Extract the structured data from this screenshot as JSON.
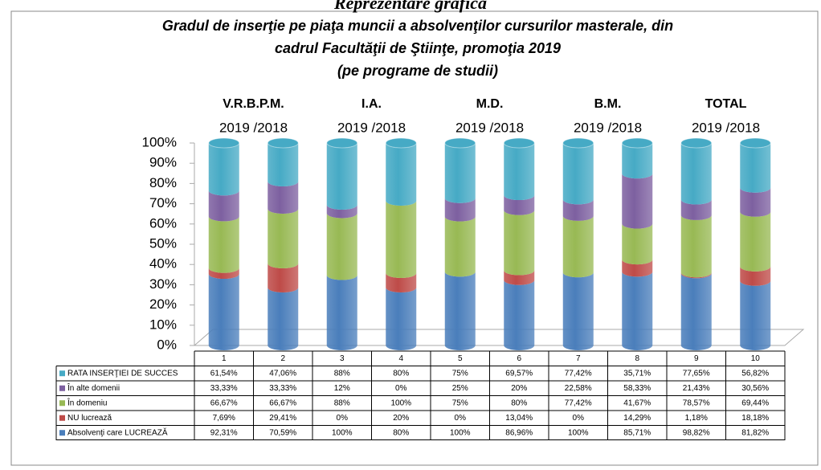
{
  "chart_data": {
    "type": "stacked_cylinder_100",
    "page_heading": "Reprezentare grafică",
    "title": [
      "Gradul de inserţie pe piaţa muncii a absolvenţilor cursurilor masterale, din",
      "cadrul Facultăţii de Ştiinţe, promoţia 2019",
      "(pe programe de studii)"
    ],
    "groups": [
      {
        "label": "V.R.B.P.M.",
        "years": "2019 /2018"
      },
      {
        "label": "I.A.",
        "years": "2019 /2018"
      },
      {
        "label": "M.D.",
        "years": "2019 /2018"
      },
      {
        "label": "B.M.",
        "years": "2019 /2018"
      },
      {
        "label": "TOTAL",
        "years": "2019 /2018"
      }
    ],
    "categories": [
      "1",
      "2",
      "3",
      "4",
      "5",
      "6",
      "7",
      "8",
      "9",
      "10"
    ],
    "ylim": [
      0,
      100
    ],
    "yticks": [
      {
        "value": 0,
        "label": "0%"
      },
      {
        "value": 10,
        "label": "10%"
      },
      {
        "value": 20,
        "label": "20%"
      },
      {
        "value": 30,
        "label": "30%"
      },
      {
        "value": 40,
        "label": "40%"
      },
      {
        "value": 50,
        "label": "50%"
      },
      {
        "value": 60,
        "label": "60%"
      },
      {
        "value": 70,
        "label": "70%"
      },
      {
        "value": 80,
        "label": "80%"
      },
      {
        "value": 90,
        "label": "90%"
      },
      {
        "value": 100,
        "label": "100%"
      }
    ],
    "series": [
      {
        "name": "Absolvenţi care LUCREAZĂ",
        "color": "#4a7ebb",
        "values": [
          92.31,
          70.59,
          100,
          80,
          100,
          86.96,
          100,
          85.71,
          98.82,
          81.82
        ],
        "value_labels": [
          "92,31%",
          "70,59%",
          "100%",
          "80%",
          "100%",
          "86,96%",
          "100%",
          "85,71%",
          "98,82%",
          "81,82%"
        ]
      },
      {
        "name": "NU lucrează",
        "color": "#be4b48",
        "values": [
          7.69,
          29.41,
          0,
          20,
          0,
          13.04,
          0,
          14.29,
          1.18,
          18.18
        ],
        "value_labels": [
          "7,69%",
          "29,41%",
          "0%",
          "20%",
          "0%",
          "13,04%",
          "0%",
          "14,29%",
          "1,18%",
          "18,18%"
        ]
      },
      {
        "name": "În domeniu",
        "color": "#98b954",
        "values": [
          66.67,
          66.67,
          88,
          100,
          75,
          80,
          77.42,
          41.67,
          78.57,
          69.44
        ],
        "value_labels": [
          "66,67%",
          "66,67%",
          "88%",
          "100%",
          "75%",
          "80%",
          "77,42%",
          "41,67%",
          "78,57%",
          "69,44%"
        ]
      },
      {
        "name": "În alte domenii",
        "color": "#7d60a0",
        "values": [
          33.33,
          33.33,
          12,
          0,
          25,
          20,
          22.58,
          58.33,
          21.43,
          30.56
        ],
        "value_labels": [
          "33,33%",
          "33,33%",
          "12%",
          "0%",
          "25%",
          "20%",
          "22,58%",
          "58,33%",
          "21,43%",
          "30,56%"
        ]
      },
      {
        "name": "RATA INSERŢIEI DE SUCCES",
        "color": "#46aac5",
        "values": [
          61.54,
          47.06,
          88,
          80,
          75,
          69.57,
          77.42,
          35.71,
          77.65,
          56.82
        ],
        "value_labels": [
          "61,54%",
          "47,06%",
          "88%",
          "80%",
          "75%",
          "69,57%",
          "77,42%",
          "35,71%",
          "77,65%",
          "56,82%"
        ]
      }
    ]
  }
}
